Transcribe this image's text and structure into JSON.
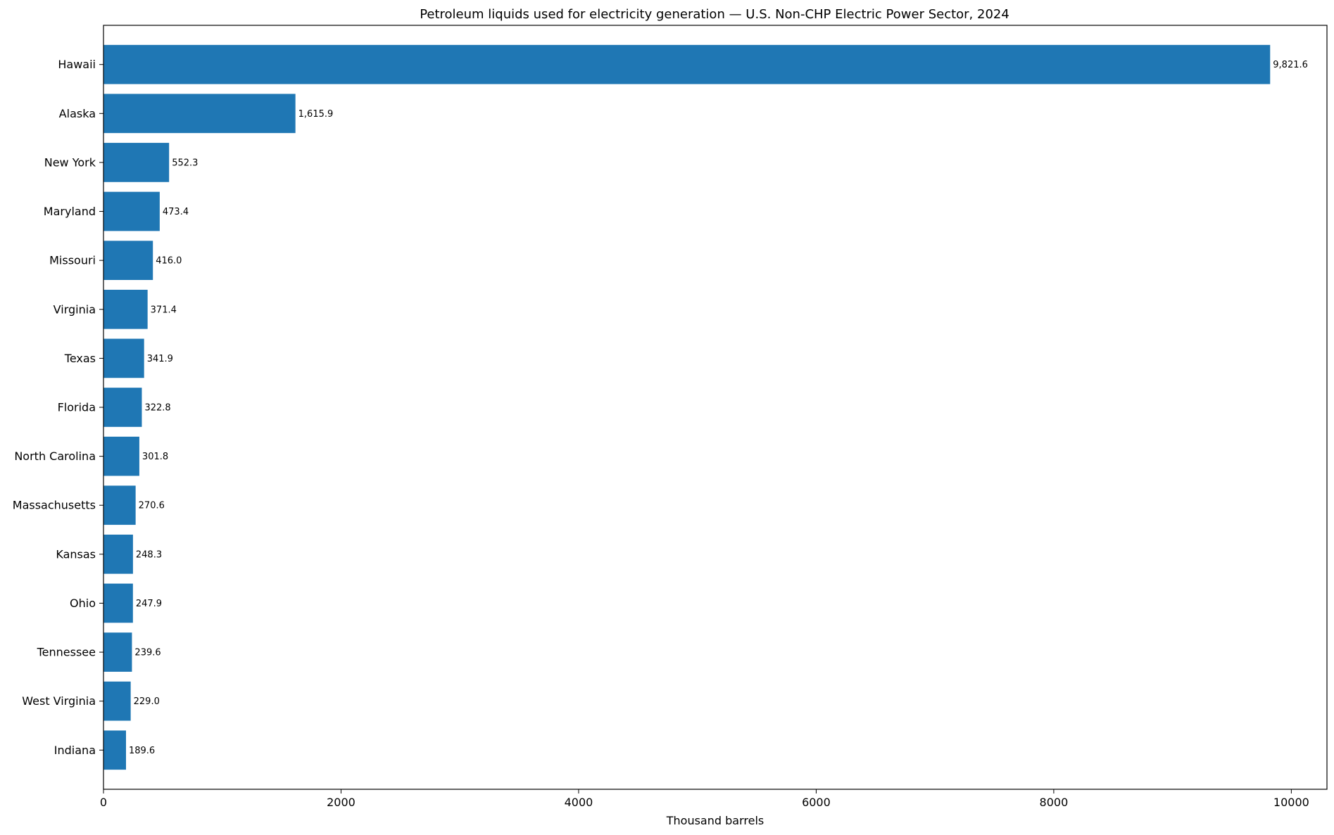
{
  "chart_data": {
    "type": "bar",
    "orientation": "horizontal",
    "title": "Petroleum liquids used for electricity generation — U.S. Non-CHP Electric Power Sector, 2024",
    "xlabel": "Thousand barrels",
    "ylabel": "",
    "xlim": [
      0,
      10300
    ],
    "xticks": [
      0,
      2000,
      4000,
      6000,
      8000,
      10000
    ],
    "xtick_labels": [
      "0",
      "2000",
      "4000",
      "6000",
      "8000",
      "10000"
    ],
    "grid": false,
    "bar_color": "#1f77b4",
    "categories": [
      "Hawaii",
      "Alaska",
      "New York",
      "Maryland",
      "Missouri",
      "Virginia",
      "Texas",
      "Florida",
      "North Carolina",
      "Massachusetts",
      "Kansas",
      "Ohio",
      "Tennessee",
      "West Virginia",
      "Indiana"
    ],
    "values": [
      9821.6,
      1615.9,
      552.3,
      473.4,
      416.0,
      371.4,
      341.9,
      322.8,
      301.8,
      270.6,
      248.3,
      247.9,
      239.6,
      229.0,
      189.6
    ],
    "value_labels": [
      "9,821.6",
      "1,615.9",
      "552.3",
      "473.4",
      "416.0",
      "371.4",
      "341.9",
      "322.8",
      "301.8",
      "270.6",
      "248.3",
      "247.9",
      "239.6",
      "229.0",
      "189.6"
    ]
  }
}
